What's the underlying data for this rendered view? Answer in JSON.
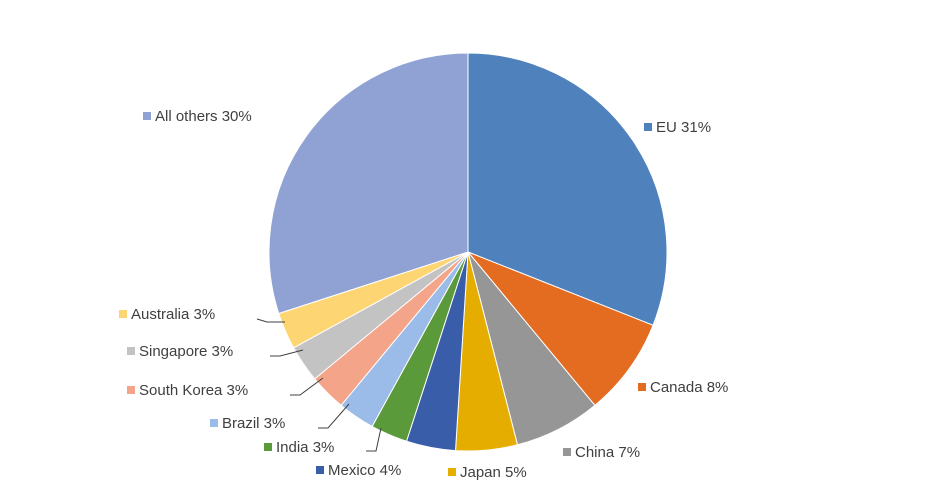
{
  "chart_data": {
    "type": "pie",
    "title": "",
    "start_angle_deg": 0,
    "direction": "clockwise",
    "legend": "data labels beside slices",
    "slices": [
      {
        "label": "EU",
        "value": 31,
        "display": "31%",
        "color": "#4f81bd"
      },
      {
        "label": "Canada",
        "value": 8,
        "display": "8%",
        "color": "#e36c21"
      },
      {
        "label": "China",
        "value": 7,
        "display": "7%",
        "color": "#969696"
      },
      {
        "label": "Japan",
        "value": 5,
        "display": "5%",
        "color": "#e5ad00"
      },
      {
        "label": "Mexico",
        "value": 4,
        "display": "4%",
        "color": "#3a5daa"
      },
      {
        "label": "India",
        "value": 3,
        "display": "3%",
        "color": "#5a9a3b"
      },
      {
        "label": "Brazil",
        "value": 3,
        "display": "3%",
        "color": "#9bbbe8"
      },
      {
        "label": "South Korea",
        "value": 3,
        "display": "3%",
        "color": "#f4a489"
      },
      {
        "label": "Singapore",
        "value": 3,
        "display": "3%",
        "color": "#c3c3c3"
      },
      {
        "label": "Australia",
        "value": 3,
        "display": "3%",
        "color": "#fdd572"
      },
      {
        "label": "All others",
        "value": 30,
        "display": "30%",
        "color": "#90a2d4"
      }
    ]
  }
}
